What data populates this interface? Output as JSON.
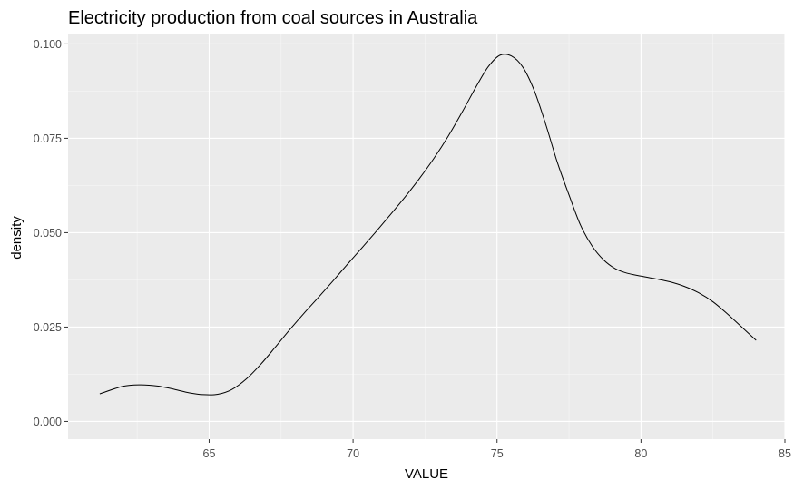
{
  "chart_data": {
    "type": "line",
    "title": "Electricity production from coal sources in Australia",
    "xlabel": "VALUE",
    "ylabel": "density",
    "xlim": [
      60.1,
      85.0
    ],
    "ylim": [
      -0.0047,
      0.1025
    ],
    "x_ticks": [
      65,
      70,
      75,
      80,
      85
    ],
    "x_tick_labels": [
      "65",
      "70",
      "75",
      "80",
      "85"
    ],
    "y_ticks": [
      0.0,
      0.025,
      0.05,
      0.075,
      0.1
    ],
    "y_tick_labels": [
      "0.000",
      "0.025",
      "0.050",
      "0.075",
      "0.100"
    ],
    "grid": true,
    "legend": "none",
    "series": [
      {
        "x": [
          61.2,
          62.0,
          62.6,
          63.2,
          63.8,
          64.3,
          64.8,
          65.3,
          65.8,
          66.3,
          66.8,
          67.3,
          67.8,
          68.3,
          68.8,
          69.3,
          69.8,
          70.3,
          70.8,
          71.3,
          71.8,
          72.3,
          72.8,
          73.3,
          73.8,
          74.3,
          74.7,
          75.1,
          75.5,
          75.9,
          76.3,
          76.7,
          77.1,
          77.5,
          77.9,
          78.3,
          78.7,
          79.1,
          79.5,
          80.0,
          80.5,
          81.0,
          81.5,
          82.0,
          82.5,
          83.0,
          83.5,
          84.0
        ],
        "y": [
          0.0073,
          0.0093,
          0.0097,
          0.0094,
          0.0085,
          0.0076,
          0.0071,
          0.0072,
          0.0085,
          0.0113,
          0.0152,
          0.0197,
          0.0243,
          0.0287,
          0.0329,
          0.0372,
          0.0416,
          0.0459,
          0.0503,
          0.0548,
          0.0594,
          0.0643,
          0.0696,
          0.0755,
          0.0821,
          0.089,
          0.094,
          0.097,
          0.0968,
          0.0938,
          0.0875,
          0.0785,
          0.0685,
          0.06,
          0.052,
          0.0465,
          0.0428,
          0.0405,
          0.0393,
          0.0385,
          0.0378,
          0.037,
          0.0358,
          0.0341,
          0.0317,
          0.0285,
          0.025,
          0.0215
        ],
        "color": "#000000"
      }
    ]
  },
  "colors": {
    "panel_background": "#ebebeb",
    "grid_major": "#ffffff",
    "grid_minor": "#f7f7f7",
    "tick": "#333333"
  }
}
